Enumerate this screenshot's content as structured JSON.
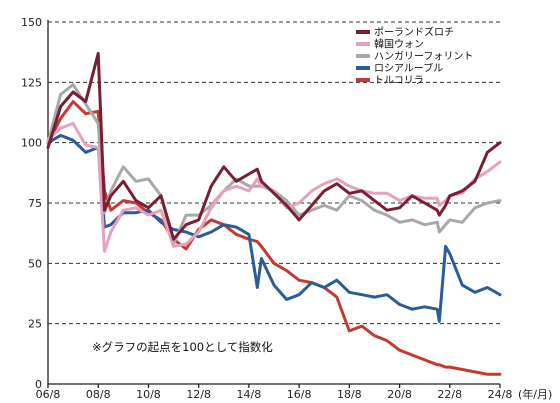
{
  "chart_data": {
    "type": "line",
    "title": "",
    "xlabel": "",
    "ylabel": "",
    "ylim": [
      0,
      150
    ],
    "yticks": [
      "0",
      "25",
      "50",
      "75",
      "100",
      "125",
      "150"
    ],
    "xticks": [
      "06/8",
      "08/8",
      "10/8",
      "12/8",
      "14/8",
      "16/8",
      "18/8",
      "20/8",
      "22/8",
      "24/8"
    ],
    "xunit": "(年/月)",
    "x": [
      "06/8",
      "07/2",
      "07/8",
      "08/2",
      "08/8",
      "08/11",
      "09/2",
      "09/8",
      "10/2",
      "10/8",
      "11/2",
      "11/8",
      "12/2",
      "12/8",
      "13/2",
      "13/8",
      "14/2",
      "14/8",
      "14/12",
      "15/2",
      "15/8",
      "16/2",
      "16/8",
      "17/2",
      "17/8",
      "18/2",
      "18/8",
      "19/2",
      "19/8",
      "20/2",
      "20/8",
      "21/2",
      "21/8",
      "22/2",
      "22/3",
      "22/6",
      "22/8",
      "23/2",
      "23/8",
      "24/2",
      "24/8"
    ],
    "series": [
      {
        "name": "ポーランドズロチ",
        "color": "#7a1e33",
        "values": [
          98,
          115,
          121,
          117,
          137,
          72,
          78,
          84,
          76,
          73,
          78,
          60,
          66,
          68,
          82,
          90,
          84,
          87,
          89,
          84,
          79,
          74,
          68,
          74,
          80,
          83,
          79,
          80,
          76,
          72,
          73,
          78,
          75,
          72,
          70,
          74,
          78,
          80,
          84,
          96,
          100
        ]
      },
      {
        "name": "韓国ウォン",
        "color": "#e6a0c0",
        "values": [
          101,
          106,
          108,
          99,
          98,
          55,
          63,
          72,
          73,
          70,
          72,
          57,
          58,
          63,
          73,
          80,
          82,
          80,
          85,
          82,
          80,
          73,
          75,
          80,
          83,
          85,
          82,
          80,
          79,
          79,
          76,
          78,
          77,
          77,
          74,
          76,
          78,
          79,
          85,
          88,
          92
        ]
      },
      {
        "name": "ハンガリーフォリント",
        "color": "#a8a8a8",
        "values": [
          100,
          120,
          124,
          116,
          108,
          71,
          80,
          90,
          84,
          85,
          78,
          58,
          70,
          70,
          74,
          80,
          85,
          82,
          82,
          82,
          80,
          76,
          70,
          72,
          74,
          72,
          78,
          76,
          72,
          70,
          67,
          68,
          66,
          67,
          63,
          66,
          68,
          67,
          73,
          75,
          76
        ]
      },
      {
        "name": "ロシアルーブル",
        "color": "#2a5c97",
        "values": [
          100,
          103,
          101,
          96,
          98,
          65,
          66,
          71,
          71,
          72,
          67,
          64,
          63,
          61,
          63,
          66,
          65,
          62,
          40,
          52,
          41,
          35,
          37,
          42,
          40,
          43,
          38,
          37,
          36,
          37,
          33,
          31,
          32,
          31,
          26,
          57,
          54,
          41,
          38,
          40,
          37
        ]
      },
      {
        "name": "トルコリラ",
        "color": "#c23a33",
        "values": [
          100,
          110,
          117,
          112,
          113,
          80,
          72,
          76,
          75,
          71,
          68,
          60,
          56,
          64,
          68,
          66,
          62,
          60,
          59,
          57,
          50,
          47,
          43,
          42,
          40,
          36,
          22,
          24,
          20,
          18,
          14,
          12,
          10,
          8,
          8,
          7,
          7,
          6,
          5,
          4,
          4
        ]
      }
    ],
    "annotation": "※グラフの起点を100として指数化"
  }
}
